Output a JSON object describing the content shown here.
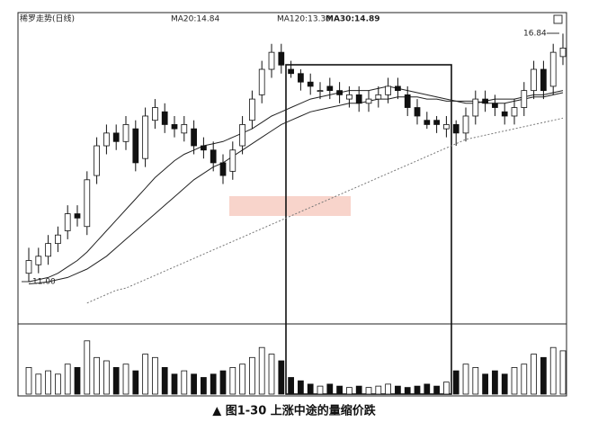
{
  "chart_data": {
    "type": "candlestick",
    "title": "稀罗走势(日线)",
    "legend_labels": [
      "MA20:14.84",
      "MA120:13.30",
      "MA30:14.89"
    ],
    "caption": "▲ 图1-30 上涨中途的量缩价跌",
    "annotations": [
      "16.84",
      "11.00"
    ],
    "ylim": [
      10.05,
      17.25
    ],
    "volume_ylim": [
      0,
      100
    ],
    "up_color": "#ffffff",
    "down_color": "#111111",
    "edge_color": "#111111",
    "open": [
      11.2,
      11.4,
      11.6,
      11.9,
      12.2,
      12.6,
      12.3,
      13.5,
      14.2,
      14.5,
      14.3,
      14.6,
      13.9,
      14.8,
      15.0,
      14.7,
      14.5,
      14.6,
      14.2,
      14.1,
      13.8,
      13.6,
      14.2,
      14.8,
      15.4,
      16.0,
      16.4,
      16.0,
      15.9,
      15.7,
      15.5,
      15.6,
      15.5,
      15.3,
      15.4,
      15.2,
      15.3,
      15.4,
      15.6,
      15.4,
      15.1,
      14.8,
      14.8,
      14.6,
      14.7,
      14.5,
      14.9,
      15.3,
      15.2,
      15.0,
      14.9,
      15.1,
      15.5,
      16.0,
      15.6,
      16.3
    ],
    "high": [
      11.8,
      11.8,
      12.1,
      12.3,
      12.8,
      12.8,
      13.6,
      14.4,
      14.7,
      14.7,
      14.9,
      14.8,
      15.1,
      15.3,
      15.2,
      14.9,
      14.9,
      14.8,
      14.4,
      14.3,
      14.0,
      14.3,
      14.9,
      15.5,
      16.2,
      16.6,
      16.6,
      16.2,
      16.0,
      15.9,
      15.7,
      15.8,
      15.7,
      15.6,
      15.6,
      15.5,
      15.6,
      15.8,
      15.8,
      15.6,
      15.3,
      15.0,
      14.9,
      14.9,
      14.8,
      15.1,
      15.5,
      15.5,
      15.4,
      15.2,
      15.3,
      15.7,
      16.2,
      16.2,
      16.6,
      16.84
    ],
    "low": [
      11.0,
      11.2,
      11.4,
      11.7,
      12.0,
      12.3,
      12.1,
      13.3,
      14.0,
      14.1,
      14.1,
      13.6,
      13.7,
      14.6,
      14.5,
      14.4,
      14.3,
      14.0,
      13.9,
      13.6,
      13.3,
      13.4,
      14.0,
      14.6,
      15.2,
      15.8,
      15.9,
      15.8,
      15.5,
      15.4,
      15.3,
      15.3,
      15.2,
      15.1,
      15.0,
      15.0,
      15.1,
      15.2,
      15.3,
      14.9,
      14.7,
      14.6,
      14.5,
      14.4,
      14.2,
      14.3,
      14.7,
      15.0,
      14.9,
      14.7,
      14.7,
      14.9,
      15.3,
      15.3,
      15.4,
      16.1
    ],
    "close": [
      11.5,
      11.6,
      11.9,
      12.1,
      12.6,
      12.5,
      13.4,
      14.2,
      14.5,
      14.3,
      14.7,
      13.8,
      14.9,
      15.1,
      14.7,
      14.6,
      14.7,
      14.2,
      14.1,
      13.8,
      13.5,
      14.1,
      14.7,
      15.3,
      16.0,
      16.4,
      16.1,
      15.9,
      15.7,
      15.6,
      15.5,
      15.5,
      15.4,
      15.4,
      15.2,
      15.3,
      15.4,
      15.6,
      15.5,
      15.1,
      14.9,
      14.7,
      14.7,
      14.7,
      14.5,
      14.9,
      15.3,
      15.2,
      15.1,
      14.9,
      15.1,
      15.5,
      16.0,
      15.5,
      16.4,
      16.5
    ],
    "volume": [
      40,
      30,
      35,
      30,
      45,
      40,
      80,
      55,
      50,
      40,
      45,
      35,
      60,
      55,
      40,
      30,
      35,
      30,
      25,
      30,
      35,
      40,
      45,
      55,
      70,
      60,
      50,
      25,
      20,
      15,
      12,
      15,
      12,
      10,
      12,
      10,
      12,
      15,
      12,
      10,
      12,
      15,
      12,
      18,
      35,
      45,
      40,
      30,
      35,
      30,
      40,
      45,
      60,
      55,
      70,
      65
    ],
    "ma_lines": [
      {
        "color": "#222222",
        "dashed": false,
        "values": [
          11.0,
          11.05,
          11.1,
          11.2,
          11.35,
          11.5,
          11.7,
          11.95,
          12.2,
          12.45,
          12.7,
          12.95,
          13.2,
          13.45,
          13.65,
          13.85,
          14.0,
          14.1,
          14.2,
          14.25,
          14.3,
          14.4,
          14.5,
          14.6,
          14.75,
          14.9,
          15.0,
          15.1,
          15.2,
          15.3,
          15.35,
          15.4,
          15.45,
          15.5,
          15.5,
          15.5,
          15.55,
          15.6,
          15.55,
          15.5,
          15.45,
          15.4,
          15.35,
          15.3,
          15.25,
          15.2,
          15.2,
          15.25,
          15.3,
          15.3,
          15.3,
          15.35,
          15.4,
          15.4,
          15.45,
          15.5
        ]
      },
      {
        "color": "#222222",
        "dashed": false,
        "values": [
          10.95,
          10.97,
          11.0,
          11.05,
          11.1,
          11.2,
          11.3,
          11.45,
          11.6,
          11.8,
          12.0,
          12.2,
          12.4,
          12.6,
          12.8,
          13.0,
          13.2,
          13.4,
          13.55,
          13.7,
          13.8,
          13.95,
          14.1,
          14.25,
          14.4,
          14.55,
          14.7,
          14.8,
          14.9,
          15.0,
          15.05,
          15.1,
          15.15,
          15.2,
          15.2,
          15.25,
          15.3,
          15.3,
          15.35,
          15.35,
          15.35,
          15.3,
          15.3,
          15.25,
          15.25,
          15.25,
          15.25,
          15.2,
          15.2,
          15.2,
          15.25,
          15.3,
          15.35,
          15.35,
          15.4,
          15.45
        ]
      },
      {
        "color": "#777777",
        "dashed": true,
        "values": [
          null,
          null,
          null,
          null,
          null,
          null,
          10.5,
          10.6,
          10.7,
          10.8,
          10.85,
          10.95,
          11.05,
          11.15,
          11.25,
          11.35,
          11.45,
          11.55,
          11.65,
          11.75,
          11.85,
          11.95,
          12.05,
          12.15,
          12.25,
          12.35,
          12.45,
          12.55,
          12.65,
          12.75,
          12.85,
          12.95,
          13.05,
          13.15,
          13.25,
          13.35,
          13.45,
          13.55,
          13.65,
          13.75,
          13.85,
          13.95,
          14.05,
          14.15,
          14.25,
          14.35,
          14.4,
          14.45,
          14.5,
          14.55,
          14.6,
          14.65,
          14.7,
          14.75,
          14.8,
          14.85
        ]
      }
    ]
  }
}
